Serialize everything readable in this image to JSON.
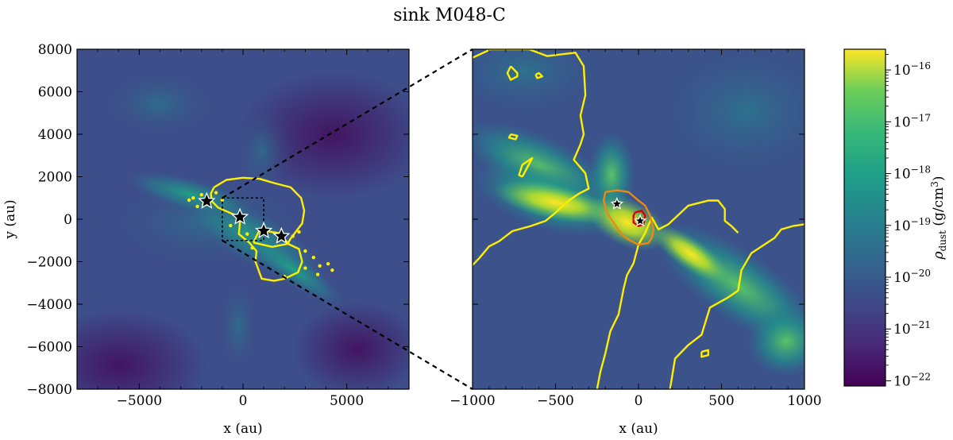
{
  "chart_data": {
    "title": "sink M048-C",
    "panels": [
      {
        "id": "left",
        "type": "heatmap",
        "xlabel": "x (au)",
        "ylabel": "y (au)",
        "xlim": [
          -8000,
          8000
        ],
        "ylim": [
          -8000,
          8000
        ],
        "xticks": [
          -5000,
          0,
          5000
        ],
        "xtick_labels": [
          "−5000",
          "0",
          "5000"
        ],
        "yticks": [
          -8000,
          -6000,
          -4000,
          -2000,
          0,
          2000,
          4000,
          6000,
          8000
        ],
        "ytick_labels": [
          "−8000",
          "−6000",
          "−4000",
          "−2000",
          "0",
          "2000",
          "4000",
          "6000",
          "8000"
        ],
        "sinks": [
          {
            "x": -1750,
            "y": 850
          },
          {
            "x": -150,
            "y": 100
          },
          {
            "x": 1000,
            "y": -550
          },
          {
            "x": 1850,
            "y": -800
          }
        ],
        "zoom_box": {
          "x0": -1000,
          "x1": 1000,
          "y0": -1000,
          "y1": 1000
        },
        "contours": [
          {
            "color": "#ffee00",
            "points": [
              [
                -1400,
                1500
              ],
              [
                -800,
                1850
              ],
              [
                0,
                1950
              ],
              [
                800,
                1900
              ],
              [
                1500,
                1700
              ],
              [
                2300,
                1500
              ],
              [
                2800,
                1000
              ],
              [
                2950,
                400
              ],
              [
                2850,
                -200
              ],
              [
                2500,
                -650
              ],
              [
                2300,
                -900
              ],
              [
                2150,
                -1150
              ],
              [
                2700,
                -1400
              ],
              [
                2850,
                -2000
              ],
              [
                2650,
                -2500
              ],
              [
                2000,
                -2800
              ],
              [
                1500,
                -2900
              ],
              [
                900,
                -2800
              ],
              [
                600,
                -2000
              ],
              [
                650,
                -1500
              ],
              [
                300,
                -1100
              ],
              [
                -200,
                -700
              ],
              [
                -150,
                -150
              ],
              [
                -400,
                200
              ],
              [
                -1200,
                550
              ],
              [
                -1500,
                850
              ],
              [
                -1550,
                1200
              ],
              [
                -1400,
                1500
              ]
            ]
          },
          {
            "color": "#ffee00",
            "points": [
              [
                500,
                -1100
              ],
              [
                1400,
                -1300
              ],
              [
                2200,
                -1150
              ],
              [
                1700,
                -650
              ],
              [
                800,
                -500
              ],
              [
                500,
                -1100
              ]
            ]
          }
        ],
        "scatter_points": [
          [
            -2600,
            900
          ],
          [
            -2400,
            1000
          ],
          [
            -2200,
            600
          ],
          [
            -2000,
            1150
          ],
          [
            -1900,
            700
          ],
          [
            -1300,
            1250
          ],
          [
            -600,
            -300
          ],
          [
            200,
            -700
          ],
          [
            450,
            -1350
          ],
          [
            2400,
            -800
          ],
          [
            3000,
            -1500
          ],
          [
            3400,
            -1800
          ],
          [
            3700,
            -2200
          ],
          [
            4100,
            -2100
          ],
          [
            4300,
            -2400
          ],
          [
            3600,
            -2600
          ],
          [
            2000,
            -2700
          ],
          [
            3000,
            -2300
          ],
          [
            2700,
            -600
          ],
          [
            -1000,
            900
          ]
        ]
      },
      {
        "id": "right",
        "type": "heatmap",
        "xlabel": "x (au)",
        "ylabel": "",
        "xlim": [
          -1000,
          1000
        ],
        "ylim": [
          -1000,
          1000
        ],
        "xticks": [
          -1000,
          -500,
          0,
          500,
          1000
        ],
        "xtick_labels": [
          "−1000",
          "−500",
          "0",
          "500",
          "1000"
        ],
        "sinks": [
          {
            "x": -130,
            "y": 90
          },
          {
            "x": 10,
            "y": -10
          }
        ],
        "contours": [
          {
            "color": "#ffee00",
            "points": [
              [
                -1000,
                950
              ],
              [
                -890,
                1000
              ],
              [
                -660,
                1000
              ],
              [
                -550,
                960
              ],
              [
                -380,
                980
              ],
              [
                -330,
                900
              ],
              [
                -320,
                730
              ],
              [
                -350,
                610
              ],
              [
                -330,
                500
              ],
              [
                -350,
                440
              ],
              [
                -390,
                350
              ],
              [
                -320,
                270
              ],
              [
                -300,
                180
              ],
              [
                -360,
                150
              ],
              [
                -420,
                110
              ],
              [
                -510,
                30
              ],
              [
                -560,
                -10
              ],
              [
                -650,
                -40
              ],
              [
                -760,
                -70
              ],
              [
                -840,
                -130
              ],
              [
                -900,
                -160
              ],
              [
                -960,
                -230
              ],
              [
                -1000,
                -270
              ]
            ]
          },
          {
            "color": "#ffee00",
            "points": [
              [
                190,
                -1000
              ],
              [
                220,
                -820
              ],
              [
                300,
                -740
              ],
              [
                380,
                -680
              ],
              [
                430,
                -520
              ],
              [
                540,
                -460
              ],
              [
                600,
                -420
              ],
              [
                620,
                -300
              ],
              [
                680,
                -200
              ],
              [
                820,
                -110
              ],
              [
                860,
                -60
              ],
              [
                930,
                -40
              ],
              [
                1000,
                -30
              ]
            ]
          },
          {
            "color": "#ffee00",
            "points": [
              [
                -250,
                -1000
              ],
              [
                -230,
                -900
              ],
              [
                -200,
                -790
              ],
              [
                -170,
                -660
              ],
              [
                -120,
                -560
              ],
              [
                -90,
                -410
              ],
              [
                -70,
                -330
              ],
              [
                -30,
                -260
              ],
              [
                0,
                -150
              ],
              [
                40,
                -80
              ],
              [
                80,
                10
              ],
              [
                120,
                -60
              ],
              [
                180,
                -30
              ],
              [
                300,
                80
              ],
              [
                420,
                110
              ],
              [
                480,
                110
              ],
              [
                520,
                60
              ],
              [
                520,
                -10
              ],
              [
                560,
                -40
              ],
              [
                600,
                -80
              ]
            ]
          },
          {
            "color": "#ffee00",
            "points": [
              [
                -770,
                900
              ],
              [
                -730,
                860
              ],
              [
                -730,
                840
              ],
              [
                -770,
                820
              ],
              [
                -790,
                860
              ],
              [
                -770,
                900
              ]
            ]
          },
          {
            "color": "#ffee00",
            "points": [
              [
                -620,
                850
              ],
              [
                -600,
                860
              ],
              [
                -580,
                840
              ],
              [
                -610,
                830
              ],
              [
                -620,
                850
              ]
            ]
          },
          {
            "color": "#ffee00",
            "points": [
              [
                -700,
                250
              ],
              [
                -640,
                360
              ],
              [
                -700,
                320
              ],
              [
                -720,
                260
              ],
              [
                -700,
                250
              ]
            ]
          },
          {
            "color": "#ffee00",
            "points": [
              [
                -770,
                500
              ],
              [
                -730,
                490
              ],
              [
                -740,
                470
              ],
              [
                -780,
                480
              ],
              [
                -770,
                500
              ]
            ]
          },
          {
            "color": "#ffee00",
            "points": [
              [
                380,
                -780
              ],
              [
                420,
                -770
              ],
              [
                420,
                -800
              ],
              [
                380,
                -810
              ],
              [
                380,
                -780
              ]
            ]
          },
          {
            "color": "#ee8811",
            "points": [
              [
                -200,
                160
              ],
              [
                -130,
                170
              ],
              [
                -60,
                160
              ],
              [
                0,
                110
              ],
              [
                40,
                80
              ],
              [
                70,
                20
              ],
              [
                90,
                -60
              ],
              [
                80,
                -110
              ],
              [
                60,
                -140
              ],
              [
                0,
                -150
              ],
              [
                -60,
                -120
              ],
              [
                -100,
                -90
              ],
              [
                -150,
                -20
              ],
              [
                -190,
                40
              ],
              [
                -210,
                110
              ],
              [
                -200,
                160
              ]
            ]
          },
          {
            "color": "#dd0000",
            "points": [
              [
                -20,
                40
              ],
              [
                20,
                50
              ],
              [
                40,
                20
              ],
              [
                30,
                -30
              ],
              [
                0,
                -40
              ],
              [
                -30,
                -20
              ],
              [
                -30,
                20
              ],
              [
                -20,
                40
              ]
            ]
          }
        ]
      }
    ],
    "colorbar": {
      "label": "ρdust (g/cm3)",
      "scale": "log",
      "range": [
        -22.1,
        -15.6
      ],
      "ticks": [
        -22,
        -21,
        -20,
        -19,
        -18,
        -17,
        -16
      ],
      "tick_labels": [
        "10−22",
        "10−21",
        "10−20",
        "10−19",
        "10−18",
        "10−17",
        "10−16"
      ]
    }
  }
}
